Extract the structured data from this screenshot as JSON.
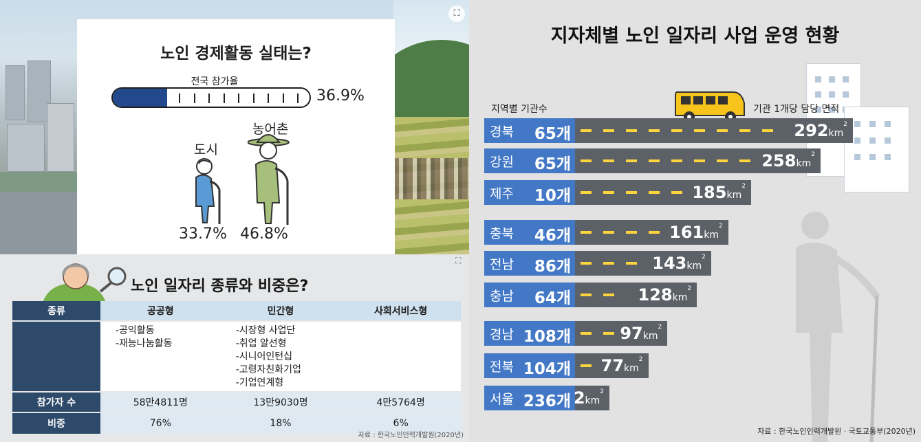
{
  "left_top": {
    "title": "노인 경제활동 실태는?",
    "national_rate_label": "전국 참가율",
    "national_rate_value": "36.9%",
    "national_rate": 36.9,
    "city_label": "도시",
    "city_value": "33.7%",
    "rural_label": "농어촌",
    "rural_value": "46.8%"
  },
  "left_bottom": {
    "title": "노인 일자리 종류와 비중은?",
    "header_label": "종류",
    "columns": [
      "공공형",
      "민간형",
      "사회서비스형"
    ],
    "public_types": [
      "-공익활동",
      "-재능나눔활동"
    ],
    "private_types": [
      "-시장형 사업단",
      "-취업 알선형",
      "-시니어인턴십",
      "-고령자친화기업",
      "-기업연계형"
    ],
    "participants_label": "참가자 수",
    "participants": [
      "58만4811명",
      "13만9030명",
      "4만5764명"
    ],
    "share_label": "비중",
    "shares": [
      "76%",
      "18%",
      "6%"
    ],
    "source": "자료 : 한국노인인력개발원(2020년)"
  },
  "right": {
    "title": "지자체별 노인 일자리 사업 운영 현황",
    "left_label": "지역별 기관수",
    "right_label": "기관 1개당 담당 면적",
    "unit_count": "개",
    "unit_area": "km",
    "unit_sup": "2",
    "source": "자료 : 한국노인인력개발원 · 국토교통부(2020년)"
  },
  "colors": {
    "navy_fill": "#21498c",
    "region_blue": "#4278c6",
    "road_gray": "#5c6067",
    "dash_yellow": "#ffd53d",
    "table_header": "#2d4a6a"
  },
  "icons": [
    "zoom-icon",
    "elderly-city-person-icon",
    "elderly-rural-farmer-icon",
    "elderly-man-magnifier-icon",
    "bus-icon",
    "building-icon",
    "elderly-silhouette-icon"
  ],
  "chart_data": [
    {
      "type": "bar",
      "title": "노인 경제활동 실태는?",
      "categories": [
        "전국 참가율",
        "도시",
        "농어촌"
      ],
      "values": [
        36.9,
        33.7,
        46.8
      ],
      "unit": "%"
    },
    {
      "type": "table",
      "title": "노인 일자리 종류와 비중은?",
      "columns": [
        "종류",
        "공공형",
        "민간형",
        "사회서비스형"
      ],
      "rows": [
        [
          "참가자 수",
          "58만4811명",
          "13만9030명",
          "4만5764명"
        ],
        [
          "비중",
          "76%",
          "18%",
          "6%"
        ]
      ]
    },
    {
      "type": "bar",
      "title": "지자체별 노인 일자리 사업 운영 현황",
      "categories": [
        "경북",
        "강원",
        "제주",
        "충북",
        "전남",
        "충남",
        "경남",
        "전북",
        "서울"
      ],
      "series": [
        {
          "name": "지역별 기관수",
          "values": [
            65,
            65,
            10,
            46,
            86,
            64,
            108,
            104,
            236
          ]
        },
        {
          "name": "기관 1개당 담당 면적",
          "values": [
            292,
            258,
            185,
            161,
            143,
            128,
            97,
            77,
            2
          ]
        }
      ]
    }
  ]
}
